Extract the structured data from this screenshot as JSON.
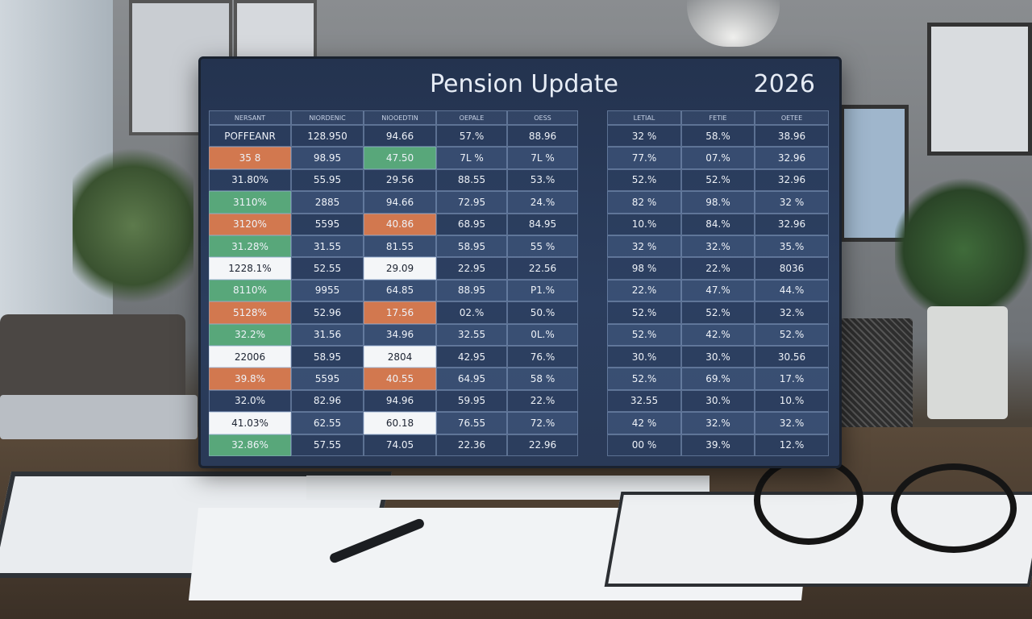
{
  "header": {
    "title": "Pension Update",
    "year": "2026"
  },
  "table": {
    "headers": [
      "NERSANT",
      "NIORDENIC",
      "NIOOEDTIN",
      "OEPALE",
      "OESS",
      "LETIAL",
      "FETIE",
      "OETEE"
    ],
    "rows": [
      [
        "POFFEANR",
        "128.950",
        "94.66",
        "57.%",
        "88.96",
        "32 %",
        "58.%",
        "38.96"
      ],
      [
        "35 8",
        "98.95",
        "47.50",
        "7L %",
        "7L %",
        "77.%",
        "07.%",
        "32.96"
      ],
      [
        "31.80%",
        "55.95",
        "29.56",
        "88.55",
        "53.%",
        "52.%",
        "52.%",
        "32.96"
      ],
      [
        "3110%",
        "2885",
        "94.66",
        "72.95",
        "24.%",
        "82 %",
        "98.%",
        "32 %"
      ],
      [
        "3120%",
        "5595",
        "40.86",
        "68.95",
        "84.95",
        "10.%",
        "84.%",
        "32.96"
      ],
      [
        "31.28%",
        "31.55",
        "81.55",
        "58.95",
        "55 %",
        "32 %",
        "32.%",
        "35.%"
      ],
      [
        "1228.1%",
        "52.55",
        "29.09",
        "22.95",
        "22.56",
        "98 %",
        "22.%",
        "8036"
      ],
      [
        "8110%",
        "9955",
        "64.85",
        "88.95",
        "P1.%",
        "22.%",
        "47.%",
        "44.%"
      ],
      [
        "5128%",
        "52.96",
        "17.56",
        "02.%",
        "50.%",
        "52.%",
        "52.%",
        "32.%"
      ],
      [
        "32.2%",
        "31.56",
        "34.96",
        "32.55",
        "0L.%",
        "52.%",
        "42.%",
        "52.%"
      ],
      [
        "22006",
        "58.95",
        "2804",
        "42.95",
        "76.%",
        "30.%",
        "30.%",
        "30.56"
      ],
      [
        "39.8%",
        "5595",
        "40.55",
        "64.95",
        "58 %",
        "52.%",
        "69.%",
        "17.%"
      ],
      [
        "32.0%",
        "82.96",
        "94.96",
        "59.95",
        "22.%",
        "32.55",
        "30.%",
        "10.%"
      ],
      [
        "41.03%",
        "62.55",
        "60.18",
        "76.55",
        "72.%",
        "42 %",
        "32.%",
        "32.%"
      ],
      [
        "32.86%",
        "57.55",
        "74.05",
        "22.36",
        "22.96",
        "00 %",
        "39.%",
        "12.%"
      ]
    ]
  }
}
